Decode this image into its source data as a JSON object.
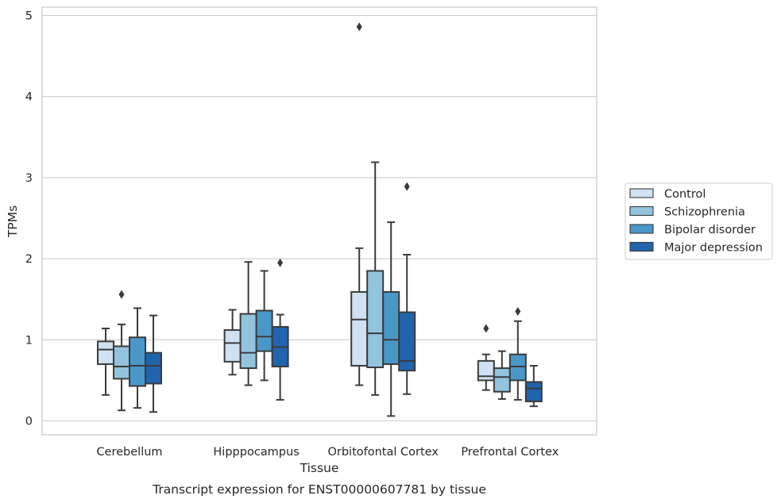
{
  "caption": "Transcript expression for ENST00000607781 by tissue",
  "chart_data": {
    "type": "box",
    "xlabel": "Tissue",
    "ylabel": "TPMs",
    "ylim": [
      -0.15,
      5.1
    ],
    "yticks": [
      0,
      1,
      2,
      3,
      4,
      5
    ],
    "grid": true,
    "legend_position": "right",
    "categories": [
      "Cerebellum",
      "Hipppocampus",
      "Orbitofontal Cortex",
      "Prefrontal Cortex"
    ],
    "series": [
      {
        "name": "Control",
        "color": "#cfe1f2",
        "boxes": [
          {
            "whislo": 0.32,
            "q1": 0.7,
            "med": 0.88,
            "q3": 0.98,
            "whishi": 1.14,
            "fliers": []
          },
          {
            "whislo": 0.57,
            "q1": 0.73,
            "med": 0.96,
            "q3": 1.12,
            "whishi": 1.37,
            "fliers": []
          },
          {
            "whislo": 0.44,
            "q1": 0.68,
            "med": 1.25,
            "q3": 1.59,
            "whishi": 2.13,
            "fliers": [
              4.86
            ]
          },
          {
            "whislo": 0.38,
            "q1": 0.5,
            "med": 0.55,
            "q3": 0.74,
            "whishi": 0.82,
            "fliers": [
              1.14
            ]
          }
        ]
      },
      {
        "name": "Schizophrenia",
        "color": "#93c4de",
        "boxes": [
          {
            "whislo": 0.13,
            "q1": 0.52,
            "med": 0.67,
            "q3": 0.92,
            "whishi": 1.19,
            "fliers": [
              1.56
            ]
          },
          {
            "whislo": 0.44,
            "q1": 0.65,
            "med": 0.84,
            "q3": 1.32,
            "whishi": 1.96,
            "fliers": []
          },
          {
            "whislo": 0.32,
            "q1": 0.66,
            "med": 1.08,
            "q3": 1.85,
            "whishi": 3.19,
            "fliers": []
          },
          {
            "whislo": 0.27,
            "q1": 0.36,
            "med": 0.54,
            "q3": 0.65,
            "whishi": 0.86,
            "fliers": []
          }
        ]
      },
      {
        "name": "Bipolar disorder",
        "color": "#4a98c9",
        "boxes": [
          {
            "whislo": 0.16,
            "q1": 0.43,
            "med": 0.68,
            "q3": 1.03,
            "whishi": 1.39,
            "fliers": []
          },
          {
            "whislo": 0.5,
            "q1": 0.86,
            "med": 1.04,
            "q3": 1.36,
            "whishi": 1.85,
            "fliers": []
          },
          {
            "whislo": 0.06,
            "q1": 0.7,
            "med": 1.0,
            "q3": 1.59,
            "whishi": 2.45,
            "fliers": []
          },
          {
            "whislo": 0.26,
            "q1": 0.5,
            "med": 0.67,
            "q3": 0.82,
            "whishi": 1.23,
            "fliers": [
              1.35
            ]
          }
        ]
      },
      {
        "name": "Major depression",
        "color": "#2064ae",
        "boxes": [
          {
            "whislo": 0.11,
            "q1": 0.46,
            "med": 0.68,
            "q3": 0.84,
            "whishi": 1.3,
            "fliers": []
          },
          {
            "whislo": 0.26,
            "q1": 0.67,
            "med": 0.91,
            "q3": 1.16,
            "whishi": 1.31,
            "fliers": [
              1.95
            ]
          },
          {
            "whislo": 0.33,
            "q1": 0.62,
            "med": 0.74,
            "q3": 1.34,
            "whishi": 2.05,
            "fliers": [
              2.89
            ]
          },
          {
            "whislo": 0.18,
            "q1": 0.24,
            "med": 0.4,
            "q3": 0.48,
            "whishi": 0.68,
            "fliers": []
          }
        ]
      }
    ]
  }
}
